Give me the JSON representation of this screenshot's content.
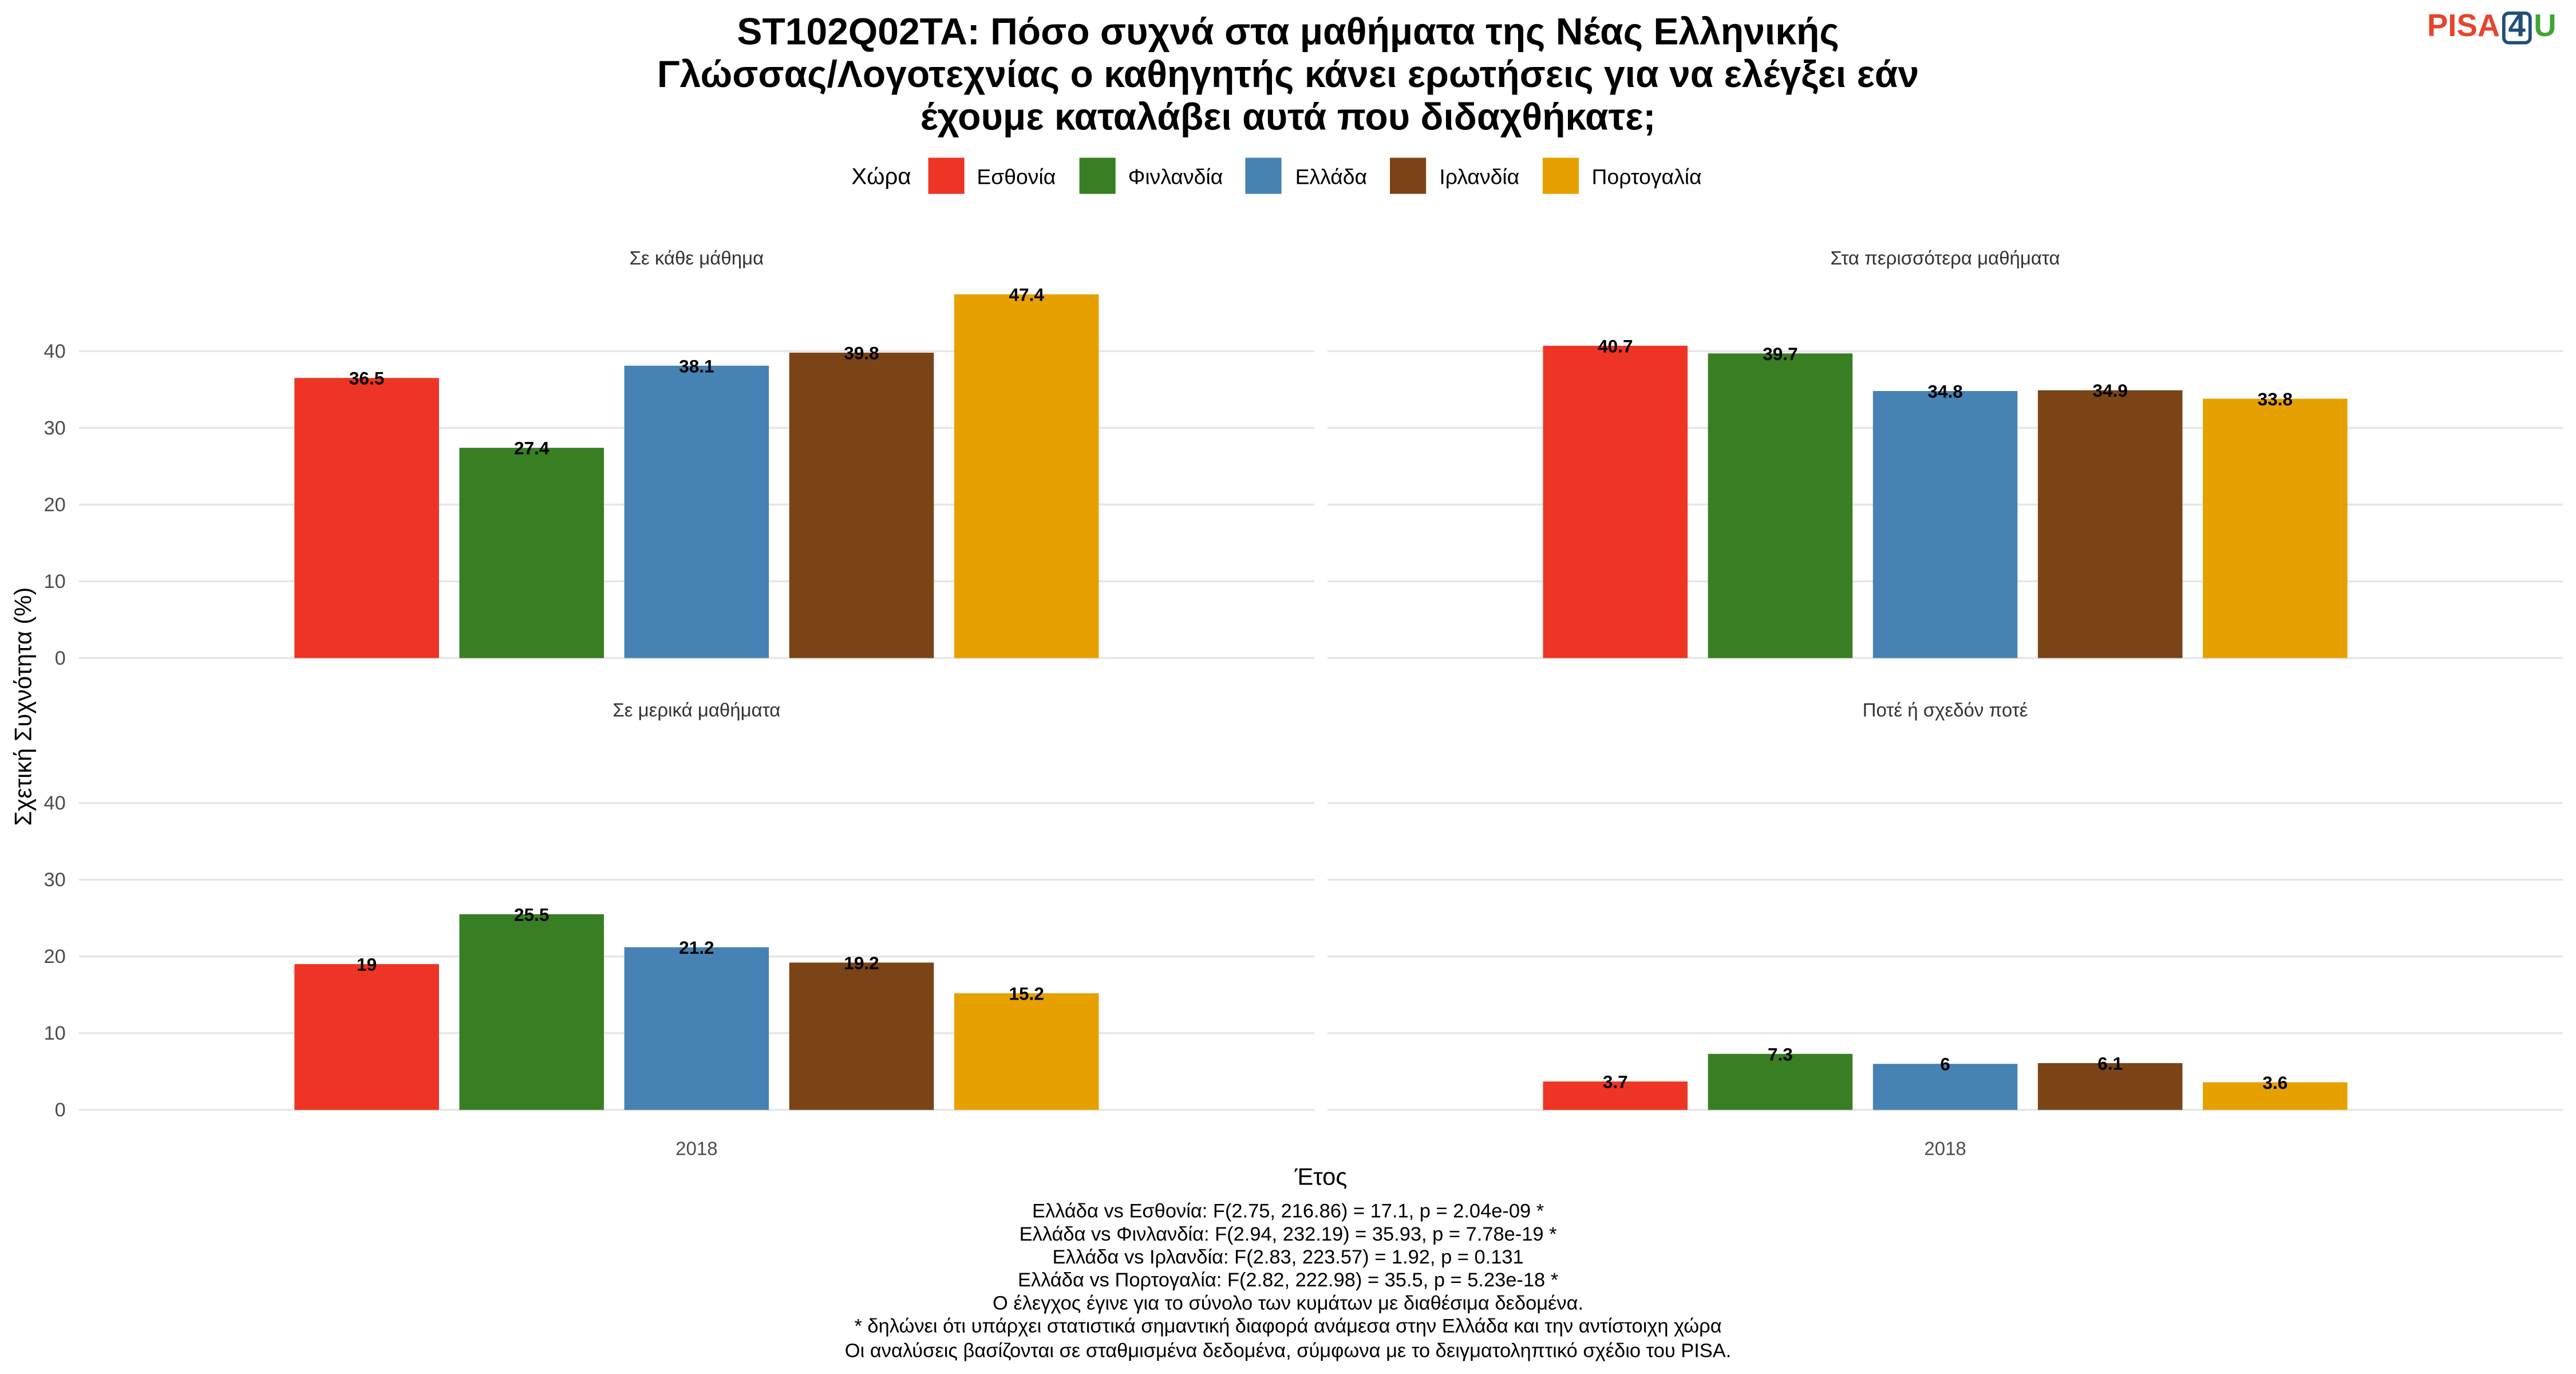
{
  "title_lines": [
    "ST102Q02TA: Πόσο συχνά στα μαθήματα της Νέας Ελληνικής",
    "Γλώσσας/Λογοτεχνίας ο καθηγητής κάνει ερωτήσεις για να ελέγξει εάν",
    "έχουμε καταλάβει αυτά που διδαχθήκατε;"
  ],
  "logo": {
    "part1": "PISA",
    "part2": "4",
    "part3": "U"
  },
  "legend": {
    "title": "Χώρα",
    "position": "top"
  },
  "colors": {
    "Εσθονία": "#EE3424",
    "Φινλανδία": "#387F23",
    "Ελλάδα": "#4682B4",
    "Ιρλανδία": "#7A4416",
    "Πορτογαλία": "#E6A000",
    "grid": "#E6E6E6",
    "logo_red": "#E8432E",
    "logo_blue": "#1F4E79",
    "logo_green": "#3FA535"
  },
  "chart_data": {
    "type": "bar",
    "layout": "facet 2x2",
    "ylabel": "Σχετική Συχνότητα (%)",
    "xlabel": "Έτος",
    "x_tick": "2018",
    "yticks": [
      0,
      10,
      20,
      30,
      40
    ],
    "ylim": [
      0,
      50
    ],
    "grid": true,
    "categories": [
      "Εσθονία",
      "Φινλανδία",
      "Ελλάδα",
      "Ιρλανδία",
      "Πορτογαλία"
    ],
    "panels": [
      {
        "title": "Σε κάθε μάθημα",
        "values": [
          36.5,
          27.4,
          38.1,
          39.8,
          47.4
        ],
        "labels": [
          "36.5",
          "27.4",
          "38.1",
          "39.8",
          "47.4"
        ]
      },
      {
        "title": "Στα περισσότερα μαθήματα",
        "values": [
          40.7,
          39.7,
          34.8,
          34.9,
          33.8
        ],
        "labels": [
          "40.7",
          "39.7",
          "34.8",
          "34.9",
          "33.8"
        ]
      },
      {
        "title": "Σε μερικά μαθήματα",
        "values": [
          19,
          25.5,
          21.2,
          19.2,
          15.2
        ],
        "labels": [
          "19",
          "25.5",
          "21.2",
          "19.2",
          "15.2"
        ]
      },
      {
        "title": "Ποτέ ή σχεδόν ποτέ",
        "values": [
          3.7,
          7.3,
          6,
          6.1,
          3.6
        ],
        "labels": [
          "3.7",
          "7.3",
          "6",
          "6.1",
          "3.6"
        ]
      }
    ]
  },
  "footer_lines": [
    "Ελλάδα vs Εσθονία: F(2.75, 216.86) = 17.1, p = 2.04e-09 *",
    "Ελλάδα vs Φινλανδία: F(2.94, 232.19) = 35.93, p = 7.78e-19 *",
    "Ελλάδα vs Ιρλανδία: F(2.83, 223.57) = 1.92, p = 0.131",
    "Ελλάδα vs Πορτογαλία: F(2.82, 222.98) = 35.5, p = 5.23e-18 *",
    "Ο έλεγχος έγινε για το σύνολο των κυμάτων με διαθέσιμα δεδομένα.",
    "* δηλώνει ότι υπάρχει στατιστικά σημαντική διαφορά ανάμεσα στην Ελλάδα και την αντίστοιχη χώρα",
    "Οι αναλύσεις βασίζονται σε σταθμισμένα δεδομένα, σύμφωνα με το δειγματοληπτικό σχέδιο του PISA."
  ]
}
